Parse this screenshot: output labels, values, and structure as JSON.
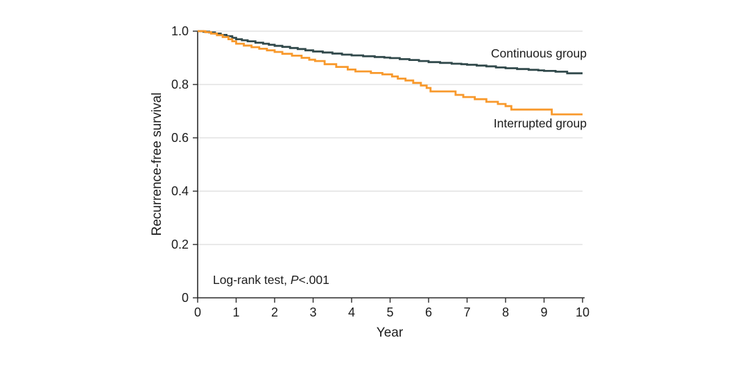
{
  "chart_data": {
    "type": "line",
    "subtype": "kaplan-meier-step",
    "title": "",
    "xlabel": "Year",
    "ylabel": "Recurrence-free survival",
    "xlim": [
      0,
      10
    ],
    "ylim": [
      0,
      1.0
    ],
    "x_ticks": [
      0,
      1,
      2,
      3,
      4,
      5,
      6,
      7,
      8,
      9,
      10
    ],
    "y_ticks": [
      {
        "value": 0,
        "label": "0"
      },
      {
        "value": 0.2,
        "label": "0.2"
      },
      {
        "value": 0.4,
        "label": "0.4"
      },
      {
        "value": 0.6,
        "label": "0.6"
      },
      {
        "value": 0.8,
        "label": "0.8"
      },
      {
        "value": 1.0,
        "label": "1.0"
      }
    ],
    "grid": "horizontal-gridlines-at-y-ticks",
    "legend_position": "inline-annotations-near-curves",
    "annotation": {
      "prefix": "Log-rank test, ",
      "italic": "P",
      "suffix": "<.001"
    },
    "series": [
      {
        "name": "Continuous group",
        "color": "#31494B",
        "points": [
          [
            0,
            1.0
          ],
          [
            0.15,
            0.998
          ],
          [
            0.3,
            0.995
          ],
          [
            0.45,
            0.991
          ],
          [
            0.6,
            0.986
          ],
          [
            0.75,
            0.981
          ],
          [
            0.9,
            0.975
          ],
          [
            1.0,
            0.97
          ],
          [
            1.15,
            0.966
          ],
          [
            1.3,
            0.962
          ],
          [
            1.5,
            0.957
          ],
          [
            1.7,
            0.953
          ],
          [
            1.85,
            0.949
          ],
          [
            2.0,
            0.945
          ],
          [
            2.2,
            0.941
          ],
          [
            2.4,
            0.937
          ],
          [
            2.6,
            0.933
          ],
          [
            2.8,
            0.928
          ],
          [
            3.0,
            0.924
          ],
          [
            3.25,
            0.92
          ],
          [
            3.5,
            0.916
          ],
          [
            3.75,
            0.912
          ],
          [
            4.0,
            0.909
          ],
          [
            4.3,
            0.906
          ],
          [
            4.6,
            0.903
          ],
          [
            4.85,
            0.901
          ],
          [
            5.0,
            0.899
          ],
          [
            5.25,
            0.895
          ],
          [
            5.5,
            0.892
          ],
          [
            5.75,
            0.888
          ],
          [
            6.0,
            0.884
          ],
          [
            6.3,
            0.881
          ],
          [
            6.6,
            0.878
          ],
          [
            6.85,
            0.876
          ],
          [
            7.0,
            0.874
          ],
          [
            7.25,
            0.871
          ],
          [
            7.5,
            0.868
          ],
          [
            7.75,
            0.864
          ],
          [
            8.0,
            0.861
          ],
          [
            8.3,
            0.858
          ],
          [
            8.6,
            0.855
          ],
          [
            8.85,
            0.853
          ],
          [
            9.0,
            0.851
          ],
          [
            9.3,
            0.848
          ],
          [
            9.6,
            0.842
          ],
          [
            10,
            0.842
          ]
        ]
      },
      {
        "name": "Interrupted group",
        "color": "#F8992C",
        "points": [
          [
            0,
            1.0
          ],
          [
            0.2,
            0.996
          ],
          [
            0.35,
            0.991
          ],
          [
            0.5,
            0.985
          ],
          [
            0.65,
            0.978
          ],
          [
            0.8,
            0.97
          ],
          [
            0.9,
            0.962
          ],
          [
            1.0,
            0.953
          ],
          [
            1.2,
            0.946
          ],
          [
            1.4,
            0.94
          ],
          [
            1.6,
            0.934
          ],
          [
            1.8,
            0.928
          ],
          [
            2.0,
            0.922
          ],
          [
            2.2,
            0.915
          ],
          [
            2.45,
            0.908
          ],
          [
            2.7,
            0.9
          ],
          [
            2.9,
            0.893
          ],
          [
            3.05,
            0.888
          ],
          [
            3.3,
            0.876
          ],
          [
            3.6,
            0.866
          ],
          [
            3.9,
            0.856
          ],
          [
            4.1,
            0.849
          ],
          [
            4.5,
            0.843
          ],
          [
            4.8,
            0.838
          ],
          [
            5.05,
            0.83
          ],
          [
            5.2,
            0.822
          ],
          [
            5.4,
            0.815
          ],
          [
            5.6,
            0.806
          ],
          [
            5.8,
            0.796
          ],
          [
            5.95,
            0.787
          ],
          [
            6.05,
            0.774
          ],
          [
            6.7,
            0.761
          ],
          [
            6.9,
            0.753
          ],
          [
            7.2,
            0.745
          ],
          [
            7.5,
            0.735
          ],
          [
            7.8,
            0.727
          ],
          [
            8.0,
            0.719
          ],
          [
            8.15,
            0.706
          ],
          [
            9.2,
            0.688
          ],
          [
            10,
            0.688
          ]
        ]
      }
    ],
    "axis_color": "#2a2a2a",
    "gridline_color": "#dcdcdc",
    "text_color": "#1c1c1c"
  }
}
